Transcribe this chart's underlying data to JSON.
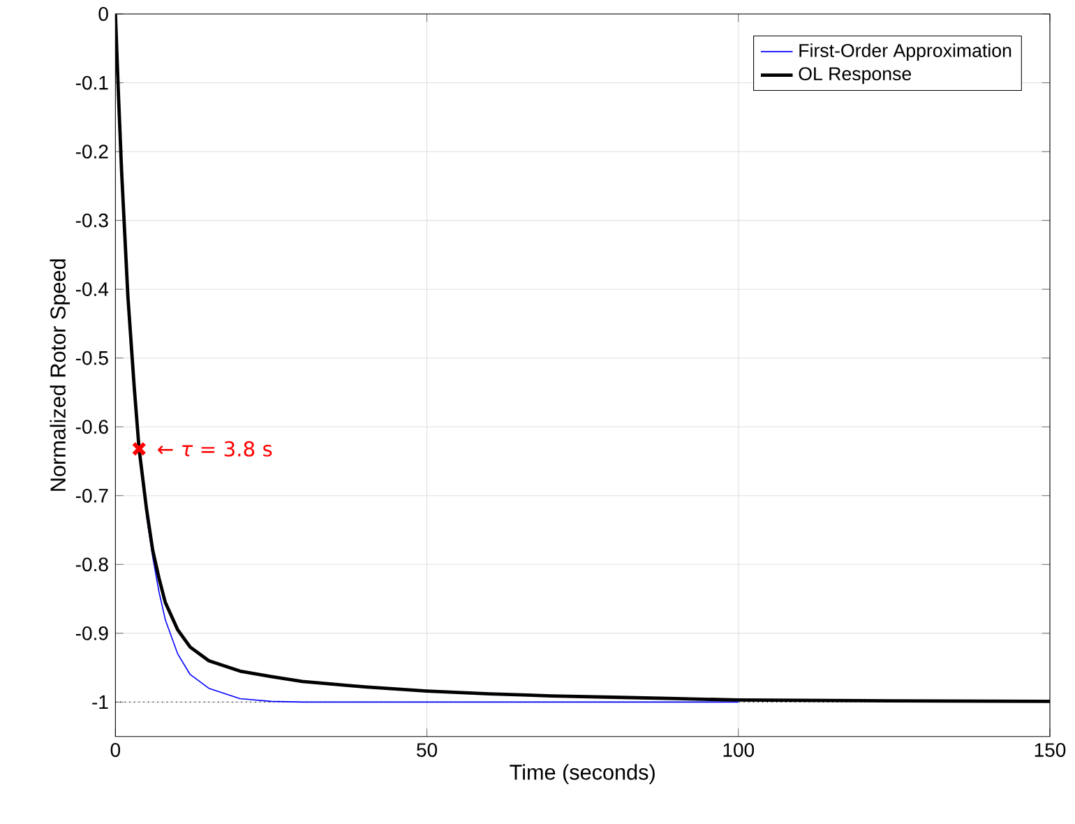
{
  "chart_data": {
    "type": "line",
    "xlabel": "Time (seconds)",
    "ylabel": "Normalized Rotor Speed",
    "xlim": [
      0,
      150
    ],
    "ylim": [
      -1.05,
      0
    ],
    "xticks": [
      0,
      50,
      100,
      150
    ],
    "yticks": [
      0,
      -0.1,
      -0.2,
      -0.3,
      -0.4,
      -0.5,
      -0.6,
      -0.7,
      -0.8,
      -0.9,
      -1
    ],
    "grid": true,
    "legend": "top right",
    "marker": "none",
    "line_style": "solid",
    "series": [
      {
        "name": "First-Order Approximation",
        "color": "#0000ff",
        "x": [
          5,
          6,
          7,
          8,
          10,
          12,
          15,
          20,
          25,
          30,
          40,
          60,
          80,
          100
        ],
        "values": [
          -0.73,
          -0.79,
          -0.84,
          -0.88,
          -0.93,
          -0.96,
          -0.98,
          -0.995,
          -0.999,
          -1,
          -1,
          -1,
          -1,
          -1
        ]
      },
      {
        "name": "OL Response",
        "color": "#000000",
        "x": [
          0,
          0.5,
          1,
          2,
          3,
          3.8,
          5,
          6,
          7,
          8,
          10,
          12,
          15,
          20,
          25,
          30,
          40,
          50,
          60,
          70,
          80,
          90,
          100,
          120,
          150
        ],
        "values": [
          0,
          -0.12,
          -0.23,
          -0.41,
          -0.54,
          -0.632,
          -0.72,
          -0.78,
          -0.82,
          -0.855,
          -0.895,
          -0.92,
          -0.94,
          -0.955,
          -0.963,
          -0.97,
          -0.978,
          -0.984,
          -0.988,
          -0.991,
          -0.993,
          -0.995,
          -0.997,
          -0.998,
          -0.999
        ]
      },
      {
        "type": "scatter",
        "color": "#ff0000",
        "marker": "cross",
        "x": [
          3.8
        ],
        "values": [
          -0.632
        ]
      }
    ],
    "ref_lines": [
      {
        "axis": "y",
        "value": -1,
        "color": "#000000",
        "line_style": "dotted"
      }
    ],
    "annotations": [
      {
        "text": "← *τ* = 3.8 s",
        "x": 3.8,
        "y": -0.632
      }
    ]
  }
}
